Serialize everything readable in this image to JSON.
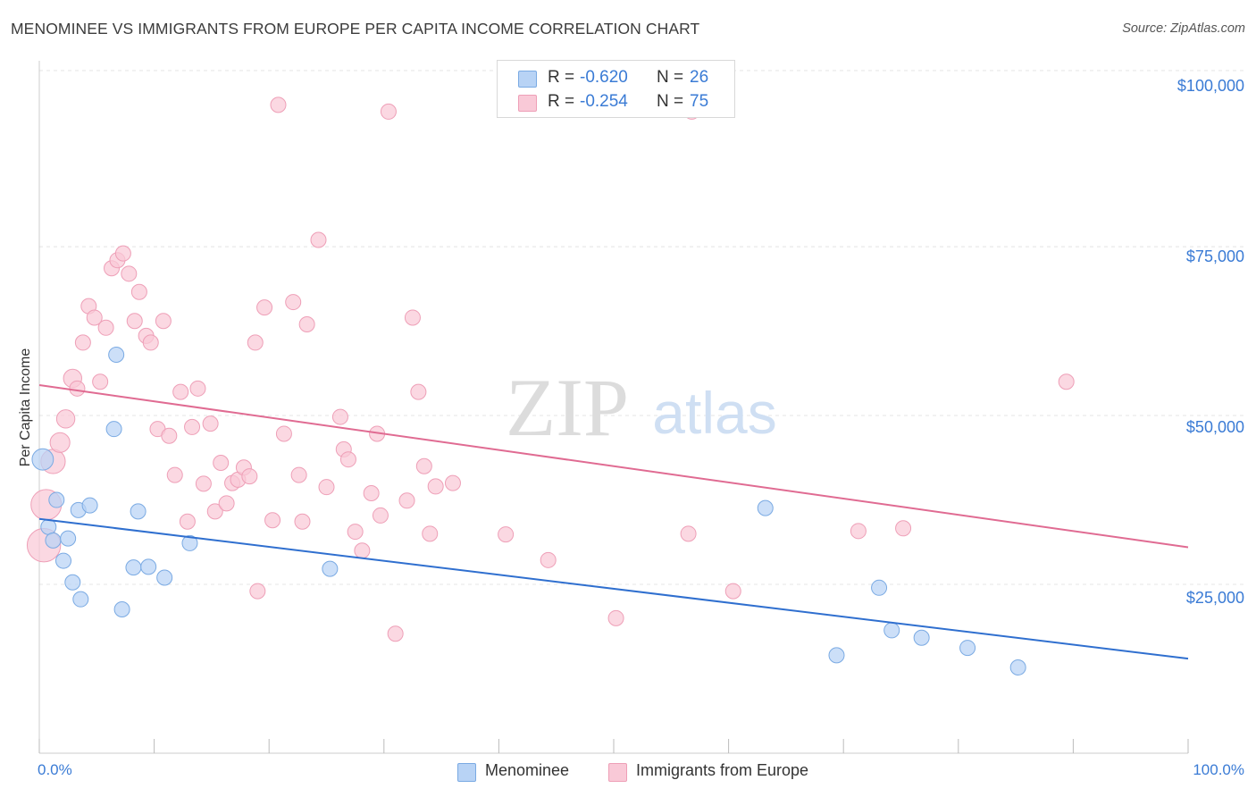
{
  "title": "MENOMINEE VS IMMIGRANTS FROM EUROPE PER CAPITA INCOME CORRELATION CHART",
  "source": "Source: ZipAtlas.com",
  "watermark": {
    "zip": "ZIP",
    "atlas": "atlas"
  },
  "colors": {
    "blue_fill": "#b8d3f5",
    "blue_stroke": "#7aaae3",
    "blue_line": "#2f6fcf",
    "pink_fill": "#f9c9d7",
    "pink_stroke": "#ee9fb7",
    "pink_line": "#e06b92",
    "accent_text": "#3a7bd5"
  },
  "stats": [
    {
      "r_label": "R = ",
      "r_value": "-0.620",
      "n_label": "N = ",
      "n_value": "26",
      "swatch": "blue"
    },
    {
      "r_label": "R = ",
      "r_value": "-0.254",
      "n_label": "N = ",
      "n_value": "75",
      "swatch": "pink"
    }
  ],
  "legend": [
    {
      "label": "Menominee",
      "swatch": "blue"
    },
    {
      "label": "Immigrants from Europe",
      "swatch": "pink"
    }
  ],
  "chart_data": {
    "type": "scatter",
    "title": "MENOMINEE VS IMMIGRANTS FROM EUROPE PER CAPITA INCOME CORRELATION CHART",
    "xlabel": "",
    "ylabel": "Per Capita Income",
    "x_tick_labels": {
      "left": "0.0%",
      "right": "100.0%"
    },
    "y_tick_labels": [
      "$25,000",
      "$50,000",
      "$75,000",
      "$100,000"
    ],
    "y_tick_values": [
      25000,
      50000,
      75000,
      100000
    ],
    "xlim": [
      0,
      100
    ],
    "ylim": [
      0,
      102000
    ],
    "grid": true,
    "series": [
      {
        "name": "Menominee",
        "color": "blue",
        "trend": {
          "x0": 0,
          "y0": 34700,
          "x1": 100,
          "y1": 14000
        },
        "points": [
          {
            "x": 0.3,
            "y": 43500,
            "s": 1.4
          },
          {
            "x": 0.8,
            "y": 33500,
            "s": 1
          },
          {
            "x": 1.2,
            "y": 31500,
            "s": 1
          },
          {
            "x": 1.5,
            "y": 37500,
            "s": 1
          },
          {
            "x": 2.1,
            "y": 28500,
            "s": 1
          },
          {
            "x": 2.5,
            "y": 31800,
            "s": 1
          },
          {
            "x": 2.9,
            "y": 25300,
            "s": 1
          },
          {
            "x": 3.4,
            "y": 36000,
            "s": 1
          },
          {
            "x": 3.6,
            "y": 22800,
            "s": 1
          },
          {
            "x": 4.4,
            "y": 36700,
            "s": 1
          },
          {
            "x": 6.7,
            "y": 59000,
            "s": 1
          },
          {
            "x": 6.5,
            "y": 48000,
            "s": 1
          },
          {
            "x": 7.2,
            "y": 21300,
            "s": 1
          },
          {
            "x": 8.2,
            "y": 27500,
            "s": 1
          },
          {
            "x": 8.6,
            "y": 35800,
            "s": 1
          },
          {
            "x": 9.5,
            "y": 27600,
            "s": 1
          },
          {
            "x": 10.9,
            "y": 26000,
            "s": 1
          },
          {
            "x": 13.1,
            "y": 31100,
            "s": 1
          },
          {
            "x": 25.3,
            "y": 27300,
            "s": 1
          },
          {
            "x": 63.2,
            "y": 36300,
            "s": 1
          },
          {
            "x": 69.4,
            "y": 14500,
            "s": 1
          },
          {
            "x": 73.1,
            "y": 24500,
            "s": 1
          },
          {
            "x": 74.2,
            "y": 18200,
            "s": 1
          },
          {
            "x": 76.8,
            "y": 17100,
            "s": 1
          },
          {
            "x": 80.8,
            "y": 15600,
            "s": 1
          },
          {
            "x": 85.2,
            "y": 12700,
            "s": 1
          }
        ]
      },
      {
        "name": "Immigrants from Europe",
        "color": "pink",
        "trend": {
          "x0": 0,
          "y0": 54500,
          "x1": 100,
          "y1": 30500
        },
        "points": [
          {
            "x": 0.4,
            "y": 30800,
            "s": 2.2
          },
          {
            "x": 0.6,
            "y": 36800,
            "s": 2.0
          },
          {
            "x": 1.2,
            "y": 43200,
            "s": 1.6
          },
          {
            "x": 1.8,
            "y": 46000,
            "s": 1.3
          },
          {
            "x": 2.3,
            "y": 49500,
            "s": 1.2
          },
          {
            "x": 2.9,
            "y": 55500,
            "s": 1.2
          },
          {
            "x": 3.3,
            "y": 54000,
            "s": 1
          },
          {
            "x": 3.8,
            "y": 60800,
            "s": 1
          },
          {
            "x": 4.3,
            "y": 66200,
            "s": 1
          },
          {
            "x": 4.8,
            "y": 64500,
            "s": 1
          },
          {
            "x": 5.3,
            "y": 55000,
            "s": 1
          },
          {
            "x": 5.8,
            "y": 63000,
            "s": 1
          },
          {
            "x": 6.3,
            "y": 71800,
            "s": 1
          },
          {
            "x": 6.8,
            "y": 73000,
            "s": 1
          },
          {
            "x": 7.3,
            "y": 74000,
            "s": 1
          },
          {
            "x": 7.8,
            "y": 71000,
            "s": 1
          },
          {
            "x": 8.3,
            "y": 64000,
            "s": 1
          },
          {
            "x": 8.7,
            "y": 68300,
            "s": 1
          },
          {
            "x": 9.3,
            "y": 61800,
            "s": 1
          },
          {
            "x": 9.7,
            "y": 60800,
            "s": 1
          },
          {
            "x": 10.3,
            "y": 48000,
            "s": 1
          },
          {
            "x": 10.8,
            "y": 64000,
            "s": 1
          },
          {
            "x": 11.3,
            "y": 47000,
            "s": 1
          },
          {
            "x": 11.8,
            "y": 41200,
            "s": 1
          },
          {
            "x": 12.3,
            "y": 53500,
            "s": 1
          },
          {
            "x": 12.9,
            "y": 34300,
            "s": 1
          },
          {
            "x": 13.3,
            "y": 48300,
            "s": 1
          },
          {
            "x": 13.8,
            "y": 54000,
            "s": 1
          },
          {
            "x": 14.3,
            "y": 39900,
            "s": 1
          },
          {
            "x": 14.9,
            "y": 48800,
            "s": 1
          },
          {
            "x": 15.3,
            "y": 35800,
            "s": 1
          },
          {
            "x": 15.8,
            "y": 43000,
            "s": 1
          },
          {
            "x": 16.3,
            "y": 37000,
            "s": 1
          },
          {
            "x": 16.8,
            "y": 40000,
            "s": 1
          },
          {
            "x": 17.3,
            "y": 40500,
            "s": 1
          },
          {
            "x": 17.8,
            "y": 42300,
            "s": 1
          },
          {
            "x": 18.3,
            "y": 41000,
            "s": 1
          },
          {
            "x": 18.8,
            "y": 60800,
            "s": 1
          },
          {
            "x": 19.0,
            "y": 24000,
            "s": 1
          },
          {
            "x": 19.6,
            "y": 66000,
            "s": 1
          },
          {
            "x": 20.3,
            "y": 34500,
            "s": 1
          },
          {
            "x": 20.8,
            "y": 96000,
            "s": 1
          },
          {
            "x": 21.3,
            "y": 47300,
            "s": 1
          },
          {
            "x": 22.1,
            "y": 66800,
            "s": 1
          },
          {
            "x": 22.6,
            "y": 41200,
            "s": 1
          },
          {
            "x": 22.9,
            "y": 34300,
            "s": 1
          },
          {
            "x": 23.3,
            "y": 63500,
            "s": 1
          },
          {
            "x": 24.3,
            "y": 76000,
            "s": 1
          },
          {
            "x": 25.0,
            "y": 39400,
            "s": 1
          },
          {
            "x": 26.2,
            "y": 49800,
            "s": 1
          },
          {
            "x": 26.5,
            "y": 45000,
            "s": 1
          },
          {
            "x": 26.9,
            "y": 43500,
            "s": 1
          },
          {
            "x": 27.5,
            "y": 32800,
            "s": 1
          },
          {
            "x": 28.1,
            "y": 30000,
            "s": 1
          },
          {
            "x": 28.9,
            "y": 38500,
            "s": 1
          },
          {
            "x": 29.4,
            "y": 47300,
            "s": 1
          },
          {
            "x": 29.7,
            "y": 35200,
            "s": 1
          },
          {
            "x": 30.4,
            "y": 95000,
            "s": 1
          },
          {
            "x": 31.0,
            "y": 17700,
            "s": 1
          },
          {
            "x": 32.0,
            "y": 37400,
            "s": 1
          },
          {
            "x": 32.5,
            "y": 64500,
            "s": 1
          },
          {
            "x": 33.0,
            "y": 53500,
            "s": 1
          },
          {
            "x": 33.5,
            "y": 42500,
            "s": 1
          },
          {
            "x": 34.0,
            "y": 32500,
            "s": 1
          },
          {
            "x": 34.5,
            "y": 39500,
            "s": 1
          },
          {
            "x": 36.0,
            "y": 40000,
            "s": 1
          },
          {
            "x": 40.6,
            "y": 32400,
            "s": 1
          },
          {
            "x": 44.3,
            "y": 28600,
            "s": 1
          },
          {
            "x": 50.2,
            "y": 20000,
            "s": 1
          },
          {
            "x": 56.5,
            "y": 32500,
            "s": 1
          },
          {
            "x": 60.4,
            "y": 24000,
            "s": 1
          },
          {
            "x": 71.3,
            "y": 32900,
            "s": 1
          },
          {
            "x": 75.2,
            "y": 33300,
            "s": 1
          },
          {
            "x": 89.4,
            "y": 55000,
            "s": 1
          },
          {
            "x": 56.8,
            "y": 95000,
            "s": 1
          }
        ]
      }
    ]
  }
}
